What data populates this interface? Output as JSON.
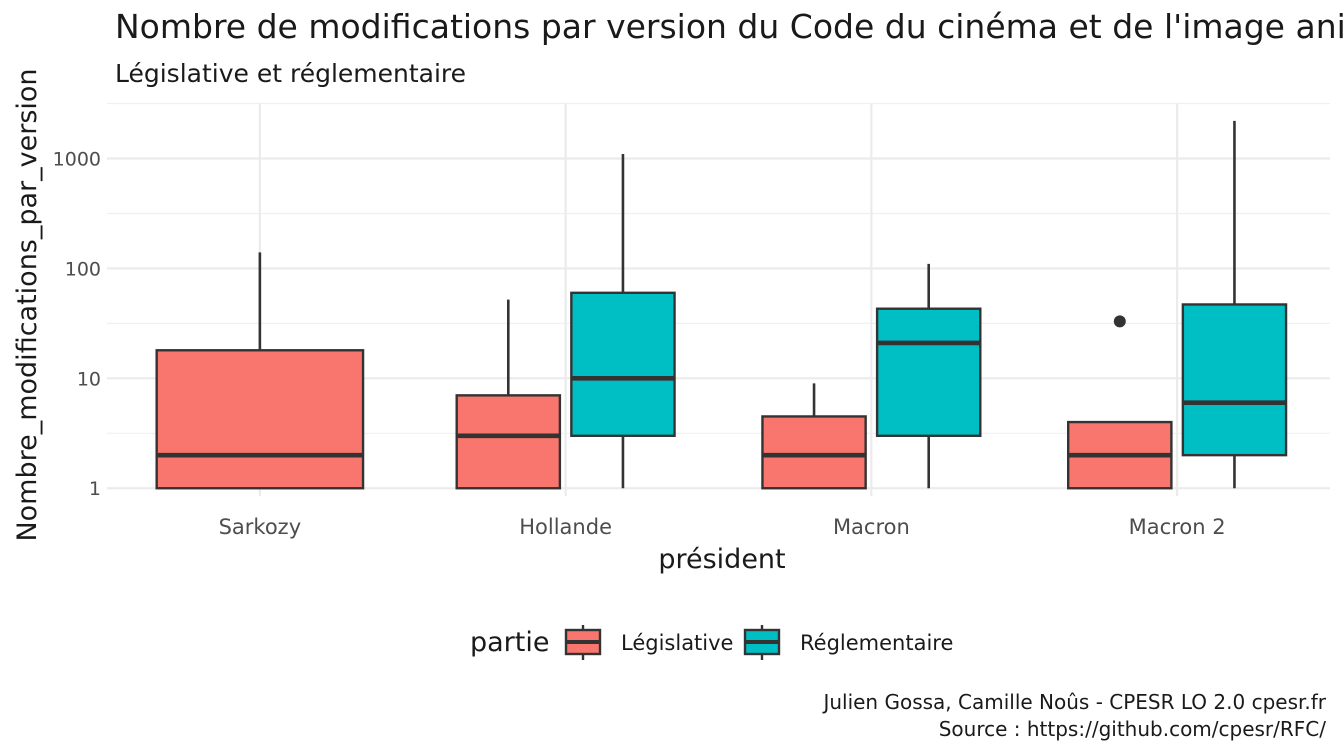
{
  "chart_data": {
    "type": "box",
    "title": "Nombre de modifications par version du Code du cinéma et de l'image animée",
    "subtitle": "Législative et réglementaire",
    "xlabel": "président",
    "ylabel": "Nombre_modifications_par_version",
    "yscale": "log10",
    "ylim": [
      0.85,
      3200
    ],
    "yticks": [
      1,
      10,
      100,
      1000
    ],
    "ytick_labels": [
      "1",
      "10",
      "100",
      "1000"
    ],
    "categories": [
      "Sarkozy",
      "Hollande",
      "Macron",
      "Macron 2"
    ],
    "grid": true,
    "legend": {
      "title": "partie",
      "position": "bottom",
      "entries": [
        {
          "name": "Législative",
          "color": "#F8766D"
        },
        {
          "name": "Réglementaire",
          "color": "#00BFC4"
        }
      ]
    },
    "series": [
      {
        "name": "Législative",
        "color": "#F8766D",
        "boxes": [
          {
            "category": "Sarkozy",
            "lower": 1,
            "q1": 1,
            "median": 2,
            "q3": 18,
            "upper": 140,
            "outliers": []
          },
          {
            "category": "Hollande",
            "lower": 1,
            "q1": 1,
            "median": 3,
            "q3": 7,
            "upper": 52,
            "outliers": []
          },
          {
            "category": "Macron",
            "lower": 1,
            "q1": 1,
            "median": 2,
            "q3": 4.5,
            "upper": 9,
            "outliers": []
          },
          {
            "category": "Macron 2",
            "lower": 1,
            "q1": 1,
            "median": 2,
            "q3": 4,
            "upper": 4,
            "outliers": [
              33
            ]
          }
        ]
      },
      {
        "name": "Réglementaire",
        "color": "#00BFC4",
        "boxes": [
          {
            "category": "Hollande",
            "lower": 1,
            "q1": 3,
            "median": 10,
            "q3": 60,
            "upper": 1100,
            "outliers": []
          },
          {
            "category": "Macron",
            "lower": 1,
            "q1": 3,
            "median": 21,
            "q3": 43,
            "upper": 110,
            "outliers": []
          },
          {
            "category": "Macron 2",
            "lower": 1,
            "q1": 2,
            "median": 6,
            "q3": 47,
            "upper": 2200,
            "outliers": []
          }
        ]
      }
    ],
    "caption_lines": [
      "Julien Gossa, Camille Noûs - CPESR LO 2.0 cpesr.fr",
      "Source : https://github.com/cpesr/RFC/"
    ]
  }
}
